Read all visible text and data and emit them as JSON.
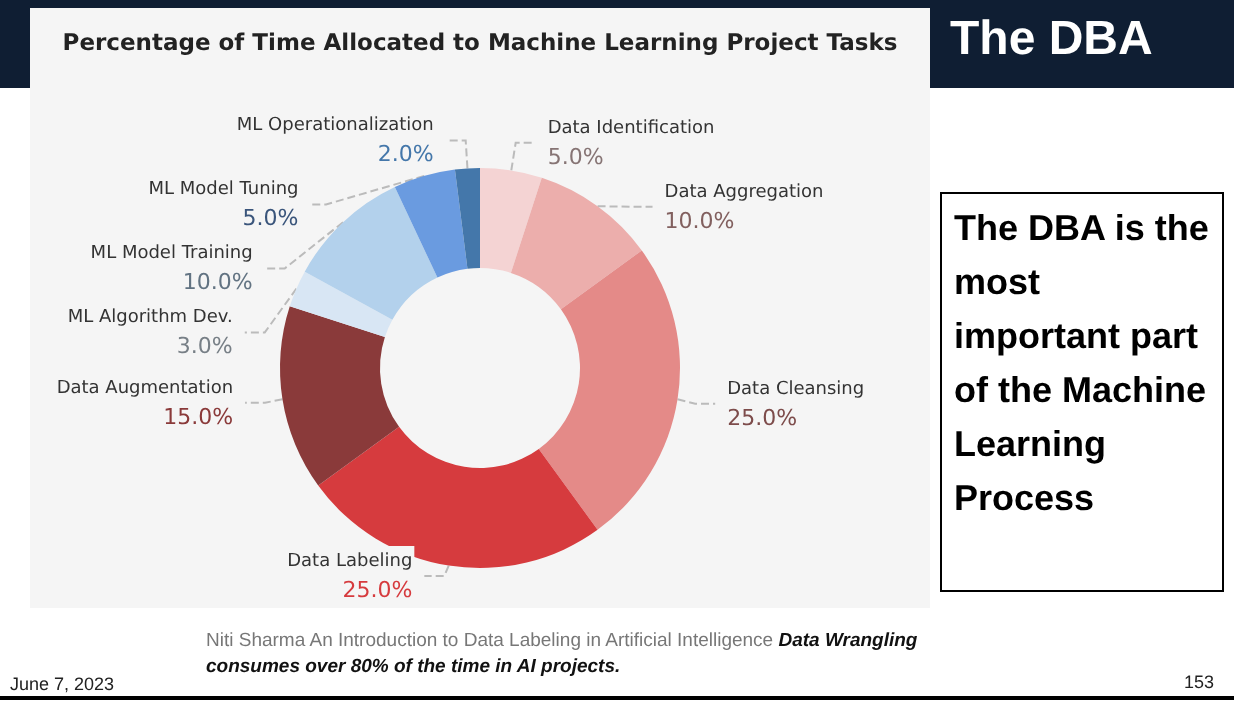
{
  "chart_data": {
    "type": "donut",
    "title": "Percentage of Time Allocated to Machine Learning Project Tasks",
    "categories": [
      "Data Identification",
      "Data Aggregation",
      "Data Cleansing",
      "Data Labeling",
      "Data Augmentation",
      "ML Algorithm Dev.",
      "ML Model Training",
      "ML Model Tuning",
      "ML Operationalization"
    ],
    "values": [
      5,
      10,
      25,
      25,
      15,
      3,
      10,
      5,
      2
    ],
    "value_labels": [
      "5.0%",
      "10.0%",
      "25.0%",
      "25.0%",
      "15.0%",
      "3.0%",
      "10.0%",
      "5.0%",
      "2.0%"
    ],
    "colors": [
      "#f4d3d3",
      "#ecaeac",
      "#e48a88",
      "#d63b3e",
      "#8a3a3a",
      "#d8e6f4",
      "#b3d1ec",
      "#6a9be0",
      "#4477aa"
    ],
    "legend": false,
    "annotations": [
      "The DBA",
      "The DBA is the most important part of the Machine Learning Process",
      "Niti Sharma An Introduction to Data Labeling in Artificial Intelligence",
      "Data Wrangling consumes over 80% of the time in  AI projects.",
      "June 7, 2023",
      "153"
    ]
  }
}
